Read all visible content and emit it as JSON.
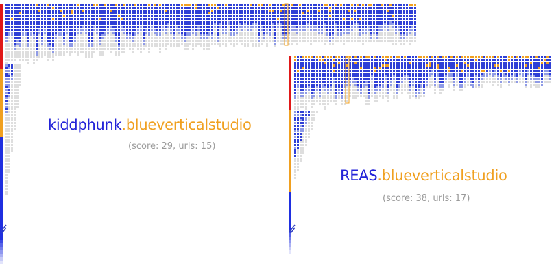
{
  "colors": {
    "user": "#2424d8",
    "domain": "#f0a020",
    "stats": "#9a9a9a",
    "cell_blue": "#2f3fd6",
    "cell_light_blue": "#8f9be6",
    "cell_grey": "#dedede",
    "cell_orange": "#f0a020",
    "edge_red": "#e01818",
    "edge_orange": "#f0a020",
    "edge_blue": "#1f2fe0"
  },
  "panels": [
    {
      "user": "kiddphunk",
      "domain": ".bluevertical",
      "domain_suffix": "studio",
      "stats": "(score: 29, urls: 15)"
    },
    {
      "user": "REAS",
      "domain": ".bluevertical",
      "domain_suffix": "studio",
      "stats": "(score: 38, urls: 17)"
    }
  ]
}
